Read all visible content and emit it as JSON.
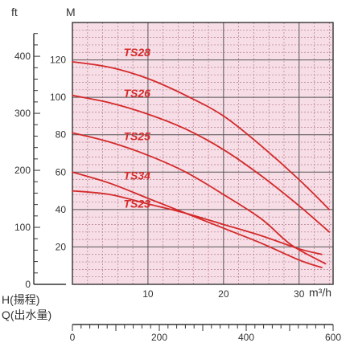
{
  "chart_data": {
    "type": "line",
    "unit_ft": "ft",
    "unit_m": "M",
    "x_unit": "m³/h",
    "h_label": "H(揚程)",
    "q_label": "Q(出水量)",
    "xlim": [
      0,
      34.5
    ],
    "ylim": [
      0,
      140
    ],
    "x_ticks": [
      10,
      20,
      30
    ],
    "y_ticks": [
      20,
      40,
      60,
      80,
      100,
      120
    ],
    "ft_ticks": [
      0,
      100,
      200,
      300,
      400
    ],
    "q_ticks": [
      0,
      200,
      400,
      600
    ],
    "grid": true,
    "colors": {
      "plot_bg": "#f7dde6",
      "grid_major": "#555555",
      "grid_minor": "#b07d8c",
      "curve": "#d42a2a",
      "label": "#d42a2a",
      "axis": "#333333"
    },
    "series": [
      {
        "name": "TS28",
        "label_at": [
          2.5,
          122
        ],
        "points": [
          [
            0,
            119
          ],
          [
            5,
            116
          ],
          [
            10,
            110
          ],
          [
            15,
            101
          ],
          [
            20,
            90
          ],
          [
            25,
            74
          ],
          [
            30,
            56
          ],
          [
            34,
            40
          ]
        ]
      },
      {
        "name": "TS26",
        "label_at": [
          2.5,
          100
        ],
        "points": [
          [
            0,
            101
          ],
          [
            5,
            97
          ],
          [
            10,
            91
          ],
          [
            15,
            83
          ],
          [
            20,
            72
          ],
          [
            25,
            58
          ],
          [
            30,
            42
          ],
          [
            34,
            28
          ]
        ]
      },
      {
        "name": "TS25",
        "label_at": [
          2.5,
          77
        ],
        "points": [
          [
            0,
            81
          ],
          [
            5,
            76
          ],
          [
            10,
            69
          ],
          [
            15,
            60
          ],
          [
            20,
            48
          ],
          [
            25,
            35
          ],
          [
            29,
            21
          ],
          [
            33.5,
            11
          ]
        ]
      },
      {
        "name": "TS34",
        "label_at": [
          2.5,
          56
        ],
        "points": [
          [
            0,
            60
          ],
          [
            5,
            54
          ],
          [
            10,
            46
          ],
          [
            15,
            38
          ],
          [
            20,
            30
          ],
          [
            25,
            22
          ],
          [
            30,
            13
          ],
          [
            33,
            9
          ]
        ]
      },
      {
        "name": "TS23",
        "label_at": [
          2.5,
          41
        ],
        "points": [
          [
            0,
            50
          ],
          [
            5,
            48
          ],
          [
            10,
            43
          ],
          [
            15,
            38
          ],
          [
            20,
            32
          ],
          [
            25,
            26
          ],
          [
            30,
            19
          ],
          [
            33,
            16
          ]
        ]
      }
    ]
  }
}
